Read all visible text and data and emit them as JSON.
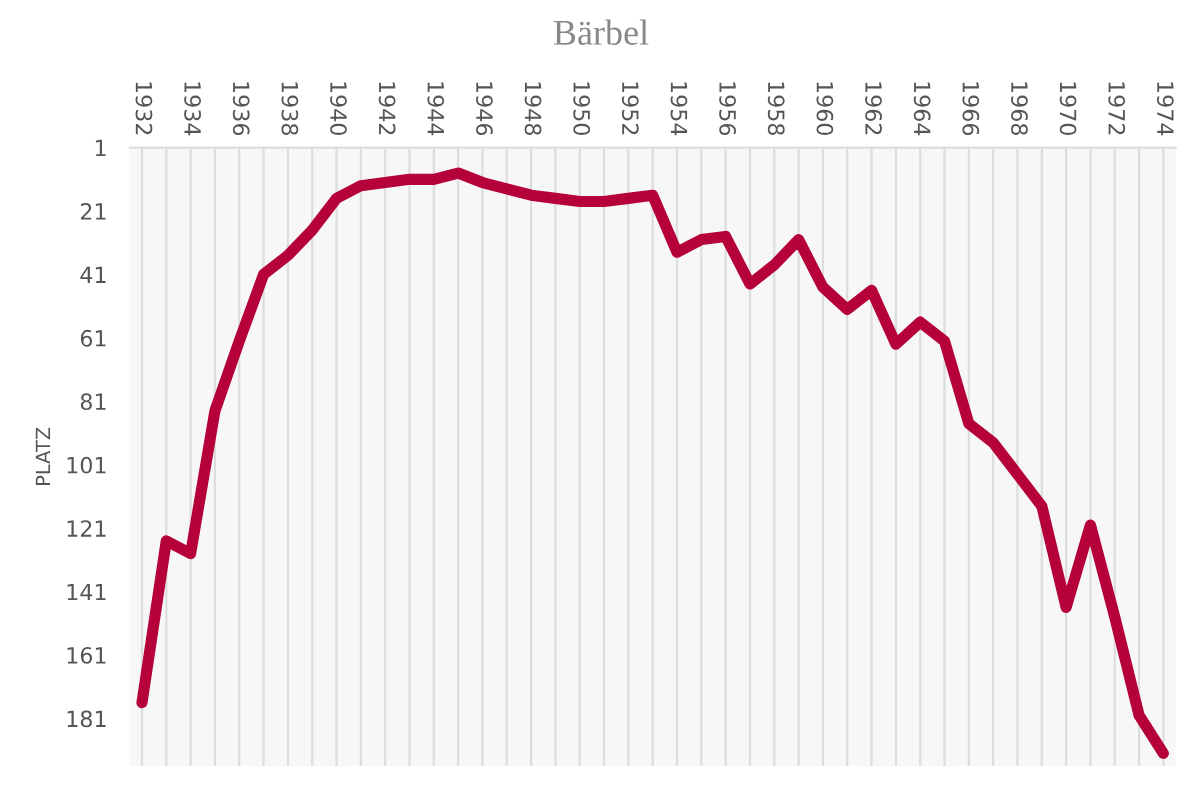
{
  "chart_data": {
    "type": "line",
    "title": "Bärbel",
    "ylabel": "PLATZ",
    "x": [
      1932,
      1933,
      1934,
      1935,
      1936,
      1937,
      1938,
      1939,
      1940,
      1941,
      1942,
      1943,
      1944,
      1945,
      1946,
      1947,
      1948,
      1949,
      1950,
      1951,
      1952,
      1953,
      1954,
      1955,
      1956,
      1957,
      1958,
      1959,
      1960,
      1961,
      1962,
      1963,
      1964,
      1965,
      1966,
      1967,
      1968,
      1969,
      1970,
      1971,
      1972,
      1973,
      1974
    ],
    "series": [
      {
        "color": "#b5003a",
        "values": [
          176,
          125,
          129,
          84,
          62,
          41,
          35,
          27,
          17,
          13,
          12,
          11,
          11,
          9,
          12,
          14,
          16,
          17,
          18,
          18,
          17,
          16,
          34,
          30,
          29,
          44,
          38,
          30,
          45,
          52,
          46,
          63,
          56,
          62,
          88,
          94,
          104,
          114,
          146,
          120,
          149,
          180,
          192
        ]
      }
    ],
    "xlim": [
      1931.5,
      1974.5
    ],
    "xticks": [
      1932,
      {
        "value": 1933,
        "label": null
      },
      1934,
      {
        "value": 1935,
        "label": null
      },
      1936,
      {
        "value": 1937,
        "label": null
      },
      1938,
      {
        "value": 1939,
        "label": null
      },
      1940,
      {
        "value": 1941,
        "label": null
      },
      1942,
      {
        "value": 1943,
        "label": null
      },
      1944,
      {
        "value": 1945,
        "label": null
      },
      1946,
      {
        "value": 1947,
        "label": null
      },
      1948,
      {
        "value": 1949,
        "label": null
      },
      1950,
      {
        "value": 1951,
        "label": null
      },
      1952,
      {
        "value": 1953,
        "label": null
      },
      1954,
      {
        "value": 1955,
        "label": null
      },
      1956,
      {
        "value": 1957,
        "label": null
      },
      1958,
      {
        "value": 1959,
        "label": null
      },
      1960,
      {
        "value": 1961,
        "label": null
      },
      1962,
      {
        "value": 1963,
        "label": null
      },
      1964,
      {
        "value": 1965,
        "label": null
      },
      1966,
      {
        "value": 1967,
        "label": null
      },
      1968,
      {
        "value": 1969,
        "label": null
      },
      1970,
      {
        "value": 1971,
        "label": null
      },
      1972,
      {
        "value": 1973,
        "label": null
      },
      1974
    ],
    "ylim": [
      196,
      1
    ],
    "yticks": [
      1,
      21,
      41,
      61,
      81,
      101,
      121,
      141,
      161,
      181
    ],
    "grid": "x",
    "marker": "none",
    "line_style": "solid"
  }
}
